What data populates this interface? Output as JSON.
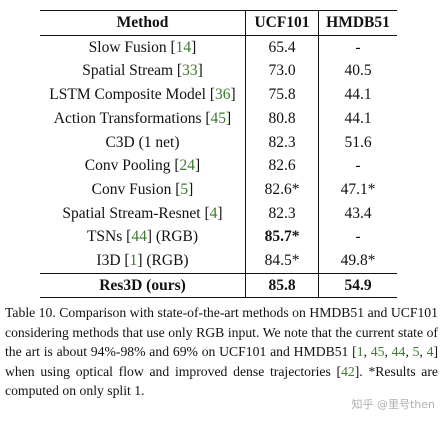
{
  "table": {
    "headers": [
      "Method",
      "UCF101",
      "HMDB51"
    ],
    "rows": [
      {
        "method": "Slow Fusion",
        "ref": "14",
        "ucf": "65.4",
        "hmdb": "-"
      },
      {
        "method": "Spatial Stream",
        "ref": "33",
        "ucf": "73.0",
        "hmdb": "40.5"
      },
      {
        "method": "LSTM Composite Model",
        "ref": "36",
        "ucf": "75.8",
        "hmdb": "44.1"
      },
      {
        "method": "Action Transformations",
        "ref": "45",
        "ucf": "80.8",
        "hmdb": "44.1"
      },
      {
        "method": "C3D (1 net)",
        "ref": "",
        "ucf": "82.3",
        "hmdb": "51.6"
      },
      {
        "method": "Conv Pooling",
        "ref": "24",
        "ucf": "82.6",
        "hmdb": "-"
      },
      {
        "method": "Conv Fusion",
        "ref": "5",
        "ucf": "82.6*",
        "hmdb": "47.1*"
      },
      {
        "method": "Spatial Stream-Resnet",
        "ref": "4",
        "ucf": "82.3",
        "hmdb": "43.4"
      },
      {
        "method": "TSNs",
        "ref": "44",
        "suffix": "(RGB)",
        "ucf": "85.7*",
        "hmdb": "-",
        "ucf_bold": true
      },
      {
        "method": "I3D",
        "ref": "1",
        "suffix": "(RGB)",
        "ucf": "84.5*",
        "hmdb": "49.8*"
      },
      {
        "method": "Res3D (ours)",
        "ref": "",
        "ucf": "85.8",
        "hmdb": "54.9",
        "bold": true
      }
    ]
  },
  "caption": {
    "part1": "Table 10. Comparison with state-of-the-art methods on HMDB51 and UCF101 considering methods that use only RGB input.  We note that the current state of the art is about 94%-98% and 69% on UCF101 and HMDB51 [",
    "refs1": [
      "1",
      "45",
      "44",
      "5",
      "4"
    ],
    "part2": "] when using optical flow and improved dense trajectories [",
    "ref2": "42",
    "part3": "].  *Results are computed on only split 1."
  },
  "watermark": "知乎 @里号then"
}
